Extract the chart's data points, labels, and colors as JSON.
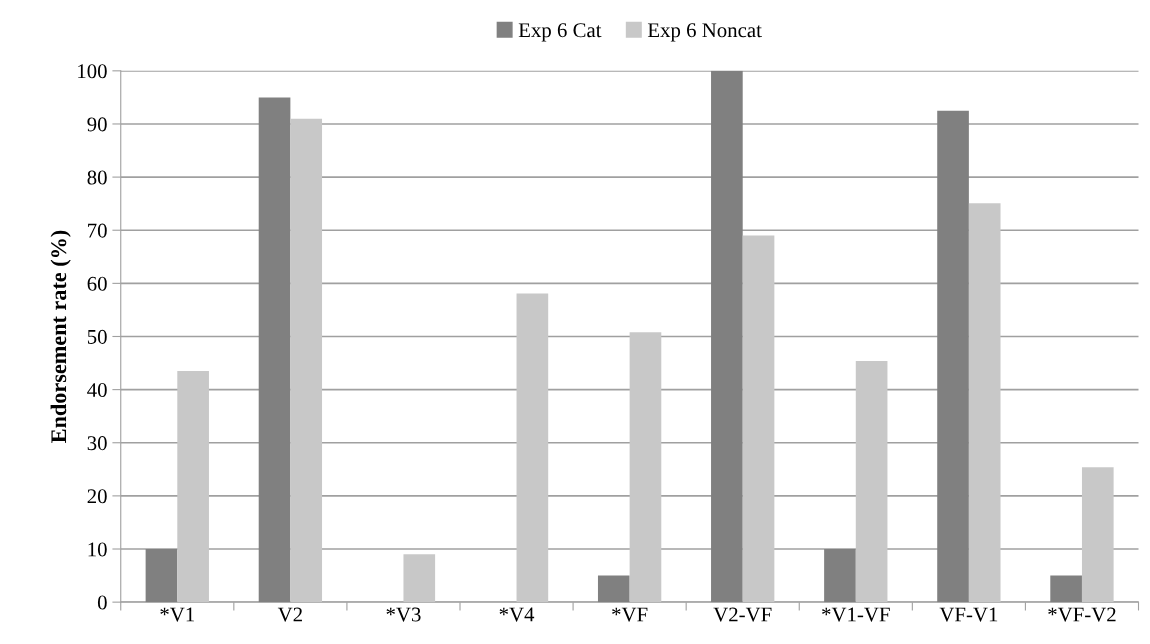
{
  "chart_data": {
    "type": "bar",
    "ylabel": "Endorsement rate (%)",
    "categories": [
      "*V1",
      "V2",
      "*V3",
      "*V4",
      "*VF",
      "V2-VF",
      "*V1-VF",
      "VF-V1",
      "*VF-V2"
    ],
    "series": [
      {
        "name": "Exp 6 Cat",
        "color": "#808080",
        "values": [
          10,
          95,
          0,
          0,
          5,
          100,
          10,
          92.5,
          5
        ]
      },
      {
        "name": "Exp 6 Noncat",
        "color": "#c8c8c8",
        "values": [
          43.5,
          91,
          9,
          58.1,
          50.8,
          69,
          45.4,
          75.1,
          25.4
        ]
      }
    ],
    "ylim": [
      0,
      100
    ],
    "yticks": [
      0,
      10,
      20,
      30,
      40,
      50,
      60,
      70,
      80,
      90,
      100
    ],
    "grid": "y",
    "legend": "top"
  }
}
